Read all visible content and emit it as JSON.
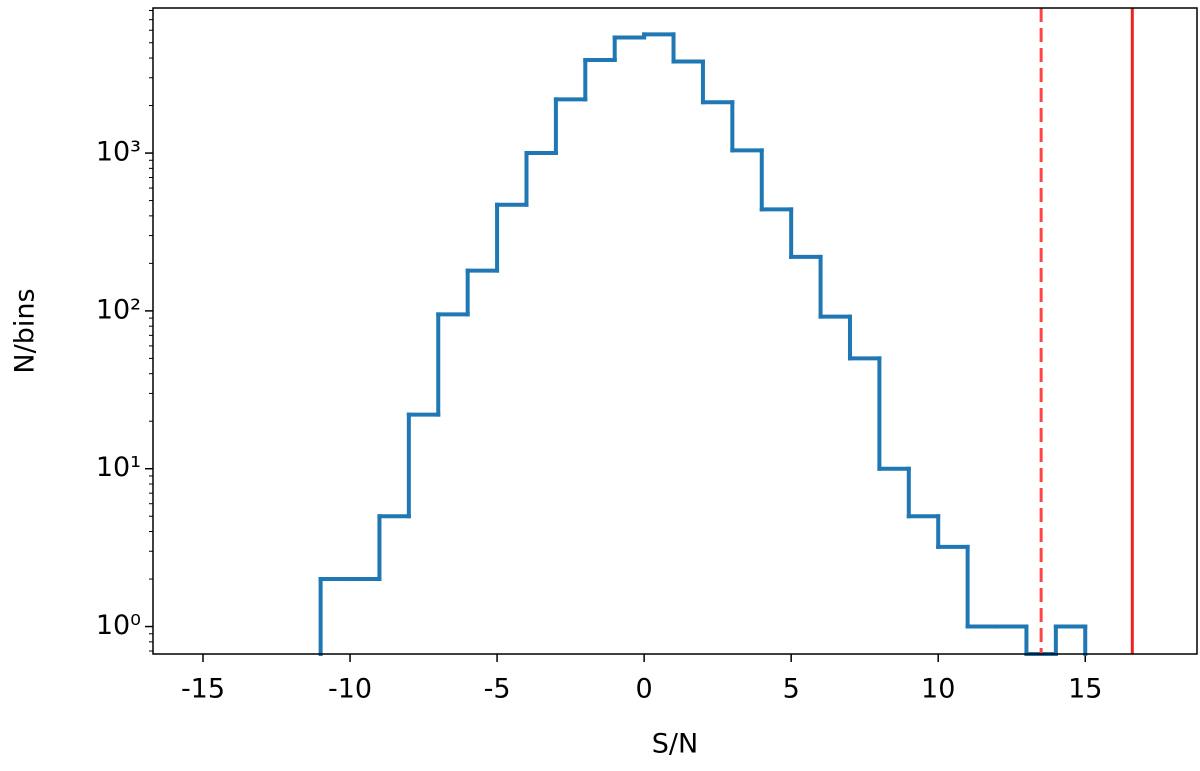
{
  "chart_data": {
    "type": "histogram",
    "xlabel": "S/N",
    "ylabel": "N/bins",
    "bins": [
      -11,
      -10,
      -9,
      -8,
      -7,
      -6,
      -5,
      -4,
      -3,
      -2,
      -1,
      0,
      1,
      2,
      3,
      4,
      5,
      6,
      7,
      8,
      9,
      10,
      11,
      12,
      13,
      14,
      15
    ],
    "values": [
      2,
      2,
      5,
      22,
      95,
      180,
      470,
      1000,
      2190,
      3890,
      5400,
      5650,
      3800,
      2100,
      1040,
      440,
      220,
      92,
      50,
      10,
      5,
      3.2,
      1,
      1,
      0,
      1
    ],
    "color": "#1f77b4",
    "xlim": [
      -16.7,
      18.8
    ],
    "xticks": [
      -15,
      -10,
      -5,
      0,
      5,
      10,
      15
    ],
    "ylim": [
      0.67,
      8300
    ],
    "yscale": "log",
    "yticks": [
      {
        "value": 1,
        "label": "10⁰"
      },
      {
        "value": 10,
        "label": "10¹"
      },
      {
        "value": 100,
        "label": "10²"
      },
      {
        "value": 1000,
        "label": "10³"
      }
    ],
    "vlines": [
      {
        "x": 13.5,
        "color": "#ff4444",
        "style": "dashed"
      },
      {
        "x": 16.6,
        "color": "#ee2222",
        "style": "solid"
      }
    ]
  }
}
